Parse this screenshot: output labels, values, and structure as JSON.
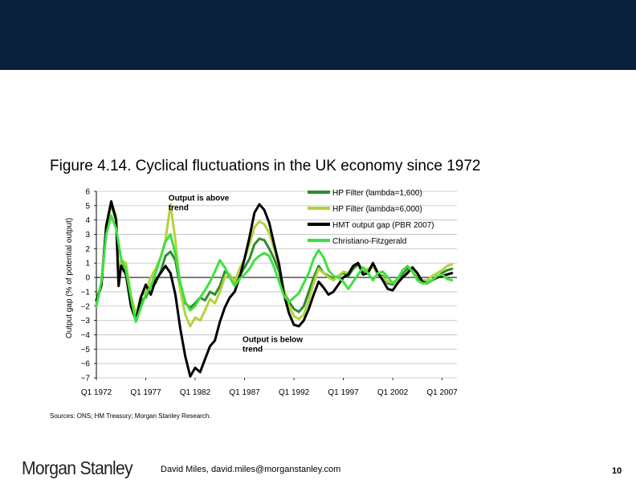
{
  "figure_title": "Figure 4.14. Cyclical fluctuations in the UK economy since 1972",
  "sources": "Sources: ONS; HM Treasury; Morgan Stanley Research.",
  "footer": {
    "logo": "Morgan Stanley",
    "author": "David Miles, david.miles@morganstanley.com",
    "page": "10"
  },
  "chart_data": {
    "type": "line",
    "title": "",
    "ylabel": "Output gap (% of potential output)",
    "xlabel": "",
    "ylim": [
      -7,
      6
    ],
    "xlim": [
      1972,
      2008.5
    ],
    "y_ticks": [
      "6",
      "5",
      "4",
      "3",
      "2",
      "1",
      "0",
      "−1",
      "−2",
      "−3",
      "−4",
      "−5",
      "−6",
      "−7"
    ],
    "y_tick_values": [
      6,
      5,
      4,
      3,
      2,
      1,
      0,
      -1,
      -2,
      -3,
      -4,
      -5,
      -6,
      -7
    ],
    "x_ticks": [
      "Q1 1972",
      "Q1 1977",
      "Q1 1982",
      "Q1 1987",
      "Q1 1992",
      "Q1 1997",
      "Q1 2002",
      "Q1 2007"
    ],
    "x_tick_values": [
      1972,
      1977,
      1982,
      1987,
      1992,
      1997,
      2002,
      2007
    ],
    "grid": true,
    "legend_position": "top-right",
    "annotations": [
      {
        "text": [
          "Output is above",
          "trend"
        ],
        "x": 1979.3,
        "y": 5.35
      },
      {
        "text": [
          "Output is below",
          "trend"
        ],
        "x": 1986.8,
        "y": -4.5
      }
    ],
    "series": [
      {
        "name": "HP Filter (lambda=1,600)",
        "color": "#2e8b2e",
        "points": [
          [
            1972,
            -1.9
          ],
          [
            1972.5,
            -0.5
          ],
          [
            1973,
            3.5
          ],
          [
            1973.5,
            5.1
          ],
          [
            1974,
            4.0
          ],
          [
            1974.25,
            -0.4
          ],
          [
            1974.5,
            0.9
          ],
          [
            1975,
            0.7
          ],
          [
            1975.5,
            -1.6
          ],
          [
            1976,
            -2.8
          ],
          [
            1976.5,
            -1.6
          ],
          [
            1977,
            -1.4
          ],
          [
            1977.5,
            -0.6
          ],
          [
            1978,
            -0.4
          ],
          [
            1978.5,
            0.4
          ],
          [
            1979,
            1.5
          ],
          [
            1979.5,
            1.8
          ],
          [
            1980,
            1.2
          ],
          [
            1980.5,
            -0.8
          ],
          [
            1981,
            -1.8
          ],
          [
            1981.5,
            -2.1
          ],
          [
            1982,
            -1.8
          ],
          [
            1982.5,
            -1.4
          ],
          [
            1983,
            -1.6
          ],
          [
            1983.5,
            -1.0
          ],
          [
            1984,
            -1.2
          ],
          [
            1984.5,
            -0.6
          ],
          [
            1985,
            0.4
          ],
          [
            1985.5,
            0.2
          ],
          [
            1986,
            -0.5
          ],
          [
            1986.5,
            0.1
          ],
          [
            1987,
            0.7
          ],
          [
            1987.5,
            1.3
          ],
          [
            1988,
            2.3
          ],
          [
            1988.5,
            2.7
          ],
          [
            1989,
            2.6
          ],
          [
            1989.5,
            2.0
          ],
          [
            1990,
            1.3
          ],
          [
            1990.5,
            0.4
          ],
          [
            1991,
            -1.0
          ],
          [
            1991.5,
            -1.7
          ],
          [
            1992,
            -2.2
          ],
          [
            1992.5,
            -2.4
          ],
          [
            1993,
            -2.0
          ],
          [
            1993.5,
            -1.0
          ],
          [
            1994,
            0.0
          ],
          [
            1994.5,
            0.8
          ],
          [
            1995,
            0.3
          ],
          [
            1995.5,
            0.1
          ],
          [
            1996,
            -0.1
          ],
          [
            1996.5,
            0.1
          ],
          [
            1997,
            0.3
          ],
          [
            1997.5,
            0.1
          ],
          [
            1998,
            0.6
          ],
          [
            1998.5,
            0.9
          ],
          [
            1999,
            0.4
          ],
          [
            1999.5,
            0.5
          ],
          [
            2000,
            0.8
          ],
          [
            2000.5,
            0.2
          ],
          [
            2001,
            0.1
          ],
          [
            2001.5,
            -0.4
          ],
          [
            2002,
            -0.5
          ],
          [
            2002.5,
            -0.2
          ],
          [
            2003,
            0.2
          ],
          [
            2003.5,
            0.6
          ],
          [
            2004,
            0.6
          ],
          [
            2004.5,
            0.1
          ],
          [
            2005,
            -0.4
          ],
          [
            2005.5,
            -0.4
          ],
          [
            2006,
            -0.2
          ],
          [
            2006.5,
            0.0
          ],
          [
            2007,
            0.3
          ],
          [
            2007.5,
            0.5
          ],
          [
            2008,
            0.6
          ]
        ]
      },
      {
        "name": "HP Filter (lambda=6,000)",
        "color": "#b4d23c",
        "points": [
          [
            1972,
            -1.6
          ],
          [
            1972.5,
            -0.4
          ],
          [
            1973,
            3.4
          ],
          [
            1973.5,
            5.2
          ],
          [
            1974,
            4.3
          ],
          [
            1974.25,
            0.2
          ],
          [
            1974.5,
            1.2
          ],
          [
            1975,
            1.0
          ],
          [
            1975.5,
            -1.3
          ],
          [
            1976,
            -2.6
          ],
          [
            1976.5,
            -1.3
          ],
          [
            1977,
            -1.0
          ],
          [
            1977.5,
            0.0
          ],
          [
            1978,
            0.6
          ],
          [
            1978.5,
            1.4
          ],
          [
            1979,
            2.6
          ],
          [
            1979.5,
            5.1
          ],
          [
            1980,
            2.6
          ],
          [
            1980.5,
            -0.9
          ],
          [
            1981,
            -2.6
          ],
          [
            1981.5,
            -3.4
          ],
          [
            1982,
            -2.8
          ],
          [
            1982.5,
            -3.0
          ],
          [
            1983,
            -2.3
          ],
          [
            1983.5,
            -1.5
          ],
          [
            1984,
            -1.8
          ],
          [
            1984.5,
            -1.0
          ],
          [
            1985,
            0.0
          ],
          [
            1985.5,
            0.2
          ],
          [
            1986,
            -0.3
          ],
          [
            1986.5,
            0.6
          ],
          [
            1987,
            1.3
          ],
          [
            1987.5,
            2.3
          ],
          [
            1988,
            3.5
          ],
          [
            1988.5,
            3.9
          ],
          [
            1989,
            3.7
          ],
          [
            1989.5,
            3.1
          ],
          [
            1990,
            2.0
          ],
          [
            1990.5,
            0.8
          ],
          [
            1991,
            -0.9
          ],
          [
            1991.5,
            -2.0
          ],
          [
            1992,
            -2.7
          ],
          [
            1992.5,
            -2.9
          ],
          [
            1993,
            -2.6
          ],
          [
            1993.5,
            -1.6
          ],
          [
            1994,
            -0.4
          ],
          [
            1994.5,
            0.6
          ],
          [
            1995,
            0.3
          ],
          [
            1995.5,
            0.0
          ],
          [
            1996,
            -0.2
          ],
          [
            1996.5,
            0.1
          ],
          [
            1997,
            0.4
          ],
          [
            1997.5,
            0.3
          ],
          [
            1998,
            0.8
          ],
          [
            1998.5,
            1.0
          ],
          [
            1999,
            0.5
          ],
          [
            1999.5,
            0.6
          ],
          [
            2000,
            0.8
          ],
          [
            2000.5,
            0.2
          ],
          [
            2001,
            0.0
          ],
          [
            2001.5,
            -0.3
          ],
          [
            2002,
            -0.4
          ],
          [
            2002.5,
            -0.3
          ],
          [
            2003,
            0.0
          ],
          [
            2003.5,
            0.4
          ],
          [
            2004,
            0.6
          ],
          [
            2004.5,
            0.2
          ],
          [
            2005,
            -0.2
          ],
          [
            2005.5,
            -0.2
          ],
          [
            2006,
            0.1
          ],
          [
            2006.5,
            0.3
          ],
          [
            2007,
            0.5
          ],
          [
            2007.5,
            0.8
          ],
          [
            2008,
            0.9
          ]
        ]
      },
      {
        "name": "HMT output gap (PBR 2007)",
        "color": "#000000",
        "points": [
          [
            1972,
            -1.6
          ],
          [
            1972.5,
            -0.6
          ],
          [
            1973,
            3.6
          ],
          [
            1973.5,
            5.3
          ],
          [
            1974,
            4.0
          ],
          [
            1974.25,
            -0.6
          ],
          [
            1974.5,
            0.8
          ],
          [
            1975,
            0.2
          ],
          [
            1975.5,
            -2.0
          ],
          [
            1976,
            -3.0
          ],
          [
            1976.5,
            -1.4
          ],
          [
            1977,
            -0.5
          ],
          [
            1977.5,
            -1.2
          ],
          [
            1978,
            -0.2
          ],
          [
            1978.5,
            0.3
          ],
          [
            1979,
            0.8
          ],
          [
            1979.5,
            0.3
          ],
          [
            1980,
            -1.2
          ],
          [
            1980.5,
            -3.6
          ],
          [
            1981,
            -5.5
          ],
          [
            1981.5,
            -6.9
          ],
          [
            1982,
            -6.3
          ],
          [
            1982.5,
            -6.6
          ],
          [
            1983,
            -5.7
          ],
          [
            1983.5,
            -4.8
          ],
          [
            1984,
            -4.4
          ],
          [
            1984.5,
            -3.1
          ],
          [
            1985,
            -2.1
          ],
          [
            1985.5,
            -1.4
          ],
          [
            1986,
            -1.0
          ],
          [
            1986.5,
            0.0
          ],
          [
            1987,
            1.3
          ],
          [
            1987.5,
            2.8
          ],
          [
            1988,
            4.5
          ],
          [
            1988.5,
            5.1
          ],
          [
            1989,
            4.7
          ],
          [
            1989.5,
            3.8
          ],
          [
            1990,
            2.3
          ],
          [
            1990.5,
            0.9
          ],
          [
            1991,
            -1.2
          ],
          [
            1991.5,
            -2.5
          ],
          [
            1992,
            -3.3
          ],
          [
            1992.5,
            -3.4
          ],
          [
            1993,
            -3.0
          ],
          [
            1993.5,
            -2.2
          ],
          [
            1994,
            -1.2
          ],
          [
            1994.5,
            -0.3
          ],
          [
            1995,
            -0.7
          ],
          [
            1995.5,
            -1.2
          ],
          [
            1996,
            -1.0
          ],
          [
            1996.5,
            -0.5
          ],
          [
            1997,
            0.0
          ],
          [
            1997.5,
            0.2
          ],
          [
            1998,
            0.8
          ],
          [
            1998.5,
            1.0
          ],
          [
            1999,
            0.2
          ],
          [
            1999.5,
            0.3
          ],
          [
            2000,
            1.0
          ],
          [
            2000.5,
            0.3
          ],
          [
            2001,
            -0.2
          ],
          [
            2001.5,
            -0.8
          ],
          [
            2002,
            -0.9
          ],
          [
            2002.5,
            -0.4
          ],
          [
            2003,
            0.0
          ],
          [
            2003.5,
            0.3
          ],
          [
            2004,
            0.7
          ],
          [
            2004.5,
            0.3
          ],
          [
            2005,
            -0.3
          ],
          [
            2005.5,
            -0.4
          ],
          [
            2006,
            -0.2
          ],
          [
            2006.5,
            0.0
          ],
          [
            2007,
            0.1
          ],
          [
            2007.5,
            0.2
          ],
          [
            2008,
            0.3
          ]
        ]
      },
      {
        "name": "Christiano-Fitzgerald",
        "color": "#3fe03f",
        "points": [
          [
            1972,
            -2.0
          ],
          [
            1972.5,
            -0.3
          ],
          [
            1973,
            3.0
          ],
          [
            1973.5,
            4.3
          ],
          [
            1974,
            3.4
          ],
          [
            1974.5,
            1.3
          ],
          [
            1975,
            0.5
          ],
          [
            1975.5,
            -1.4
          ],
          [
            1976,
            -3.1
          ],
          [
            1976.5,
            -2.1
          ],
          [
            1977,
            -1.2
          ],
          [
            1977.5,
            -0.6
          ],
          [
            1978,
            0.3
          ],
          [
            1978.5,
            1.4
          ],
          [
            1979,
            2.5
          ],
          [
            1979.5,
            3.0
          ],
          [
            1980,
            1.6
          ],
          [
            1980.5,
            -0.4
          ],
          [
            1981,
            -1.7
          ],
          [
            1981.5,
            -2.3
          ],
          [
            1982,
            -2.0
          ],
          [
            1982.5,
            -1.4
          ],
          [
            1983,
            -0.9
          ],
          [
            1983.5,
            -0.3
          ],
          [
            1984,
            0.4
          ],
          [
            1984.5,
            1.2
          ],
          [
            1985,
            0.7
          ],
          [
            1985.5,
            0.0
          ],
          [
            1986,
            -0.6
          ],
          [
            1986.5,
            -0.1
          ],
          [
            1987,
            0.2
          ],
          [
            1987.5,
            0.6
          ],
          [
            1988,
            1.2
          ],
          [
            1988.5,
            1.5
          ],
          [
            1989,
            1.7
          ],
          [
            1989.5,
            1.5
          ],
          [
            1990,
            0.7
          ],
          [
            1990.5,
            -0.3
          ],
          [
            1991,
            -1.3
          ],
          [
            1991.5,
            -1.7
          ],
          [
            1992,
            -1.4
          ],
          [
            1992.5,
            -1.1
          ],
          [
            1993,
            -0.4
          ],
          [
            1993.5,
            0.3
          ],
          [
            1994,
            1.3
          ],
          [
            1994.5,
            1.9
          ],
          [
            1995,
            1.4
          ],
          [
            1995.5,
            0.5
          ],
          [
            1996,
            0.1
          ],
          [
            1996.5,
            0.0
          ],
          [
            1997,
            -0.3
          ],
          [
            1997.5,
            -0.8
          ],
          [
            1998,
            -0.3
          ],
          [
            1998.5,
            0.2
          ],
          [
            1999,
            0.7
          ],
          [
            1999.5,
            0.3
          ],
          [
            2000,
            -0.2
          ],
          [
            2000.5,
            0.3
          ],
          [
            2001,
            0.4
          ],
          [
            2001.5,
            0.0
          ],
          [
            2002,
            -0.4
          ],
          [
            2002.5,
            -0.1
          ],
          [
            2003,
            0.5
          ],
          [
            2003.5,
            0.8
          ],
          [
            2004,
            0.4
          ],
          [
            2004.5,
            -0.2
          ],
          [
            2005,
            -0.4
          ],
          [
            2005.5,
            -0.4
          ],
          [
            2006,
            -0.2
          ],
          [
            2006.5,
            0.1
          ],
          [
            2007,
            0.2
          ],
          [
            2007.5,
            -0.1
          ],
          [
            2008,
            -0.2
          ]
        ]
      }
    ]
  }
}
